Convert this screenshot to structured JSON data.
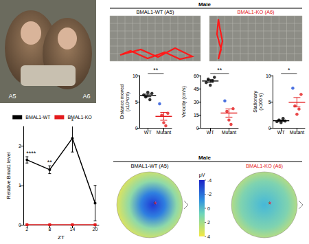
{
  "photo": {
    "labels": [
      "A5",
      "A6"
    ]
  },
  "behavior_header": {
    "title": "Male",
    "groups": [
      "BMAL1-WT (A5)",
      "BMAL1-KO (A6)"
    ],
    "colors": [
      "#000000",
      "#e41a1c"
    ]
  },
  "chart_data": [
    {
      "type": "line",
      "x": [
        2,
        8,
        14,
        20
      ],
      "xlim": [
        1,
        21
      ],
      "xticks": [
        2,
        8,
        14,
        20
      ],
      "xlabel": "ZT",
      "ylabel": "Relative Bmal1 level",
      "ylim": [
        0,
        2.5
      ],
      "yticks": [
        0,
        1,
        2
      ],
      "grid": false,
      "legend": "top",
      "series": [
        {
          "name": "BMAL1-WT",
          "color": "#000000",
          "marker": "circle",
          "values": [
            1.65,
            1.4,
            2.2,
            0.55
          ],
          "errors": [
            0.08,
            0.1,
            0.35,
            0.45
          ]
        },
        {
          "name": "BMAL1-KO",
          "color": "#e41a1c",
          "marker": "square",
          "values": [
            0,
            0,
            0,
            0
          ],
          "errors": [
            0,
            0,
            0,
            0
          ]
        }
      ],
      "annotations": [
        {
          "x": 2,
          "text": "****"
        },
        {
          "x": 8,
          "text": "**"
        },
        {
          "x": 14,
          "text": "*"
        }
      ]
    },
    {
      "type": "scatter",
      "ylabel": "Distance moved\n(x10⁴cm)",
      "categories": [
        "WT",
        "Mutant"
      ],
      "ylim": [
        0,
        10
      ],
      "yticks": [
        0,
        5,
        10
      ],
      "grid": false,
      "significance": "**",
      "groups": [
        {
          "color": "#000000",
          "values": [
            6.3,
            5.9,
            6.8,
            5.4,
            6.6
          ],
          "colors": [
            "#000000",
            "#000000",
            "#000000",
            "#000000",
            "#000000"
          ],
          "mean": 6.2,
          "sem": 0.25
        },
        {
          "color": "#e41a1c",
          "values": [
            4.6,
            2.4,
            1.0,
            0.4,
            2.8
          ],
          "colors": [
            "#1f4fd8",
            "#e41a1c",
            "#e41a1c",
            "#e41a1c",
            "#e41a1c"
          ],
          "mean": 2.2,
          "sem": 0.75
        }
      ]
    },
    {
      "type": "scatter",
      "ylabel": "Velocity (cm/s)",
      "categories": [
        "WT",
        "Mutant"
      ],
      "ylim": [
        0,
        60
      ],
      "yticks": [
        0,
        15,
        30,
        45,
        60
      ],
      "grid": false,
      "significance": "**",
      "groups": [
        {
          "color": "#000000",
          "values": [
            52,
            56,
            49,
            54,
            58
          ],
          "colors": [
            "#000000",
            "#000000",
            "#000000",
            "#000000",
            "#000000"
          ],
          "mean": 53.8,
          "sem": 1.6
        },
        {
          "color": "#e41a1c",
          "values": [
            31,
            19,
            9,
            4,
            22
          ],
          "colors": [
            "#1f4fd8",
            "#e41a1c",
            "#e41a1c",
            "#e41a1c",
            "#e41a1c"
          ],
          "mean": 17,
          "sem": 4.7
        }
      ]
    },
    {
      "type": "scatter",
      "ylabel": "Stationary\n(x100 s)",
      "categories": [
        "WT",
        "Mutant"
      ],
      "ylim": [
        0,
        10
      ],
      "yticks": [
        0,
        5,
        10
      ],
      "grid": false,
      "significance": "*",
      "groups": [
        {
          "color": "#000000",
          "values": [
            1.2,
            1.5,
            1.0,
            1.8,
            1.3
          ],
          "colors": [
            "#000000",
            "#000000",
            "#000000",
            "#000000",
            "#000000"
          ],
          "mean": 1.36,
          "sem": 0.14
        },
        {
          "color": "#e41a1c",
          "values": [
            7.6,
            4.2,
            2.6,
            3.6,
            6.4
          ],
          "colors": [
            "#1f4fd8",
            "#e41a1c",
            "#e41a1c",
            "#e41a1c",
            "#e41a1c"
          ],
          "mean": 4.9,
          "sem": 0.9
        }
      ]
    }
  ],
  "topography": {
    "title": "Male",
    "maps": [
      {
        "label": "BMAL1-WT (A5)",
        "color": "#000000"
      },
      {
        "label": "BMAL1-KO (A6)",
        "color": "#e41a1c"
      }
    ],
    "colorbar": {
      "unit": "μV",
      "range": [
        -4,
        4
      ],
      "ticks": [
        -4,
        -2,
        0,
        2,
        4
      ]
    }
  }
}
